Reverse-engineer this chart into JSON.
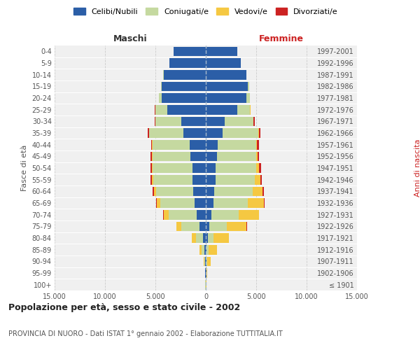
{
  "age_groups": [
    "100+",
    "95-99",
    "90-94",
    "85-89",
    "80-84",
    "75-79",
    "70-74",
    "65-69",
    "60-64",
    "55-59",
    "50-54",
    "45-49",
    "40-44",
    "35-39",
    "30-34",
    "25-29",
    "20-24",
    "15-19",
    "10-14",
    "5-9",
    "0-4"
  ],
  "birth_years": [
    "≤ 1901",
    "1902-1906",
    "1907-1911",
    "1912-1916",
    "1917-1921",
    "1922-1926",
    "1927-1931",
    "1932-1936",
    "1937-1941",
    "1942-1946",
    "1947-1951",
    "1952-1956",
    "1957-1961",
    "1962-1966",
    "1967-1971",
    "1972-1976",
    "1977-1981",
    "1982-1986",
    "1987-1991",
    "1992-1996",
    "1997-2001"
  ],
  "maschi": {
    "celibi": [
      30,
      50,
      80,
      150,
      280,
      600,
      900,
      1100,
      1250,
      1300,
      1350,
      1500,
      1600,
      2200,
      2400,
      3800,
      4400,
      4400,
      4200,
      3600,
      3200
    ],
    "coniugati": [
      5,
      20,
      80,
      250,
      700,
      1800,
      2800,
      3400,
      3700,
      3900,
      3900,
      3800,
      3700,
      3400,
      2600,
      1200,
      250,
      50,
      20,
      5,
      2
    ],
    "vedovi": [
      5,
      10,
      50,
      200,
      400,
      500,
      500,
      350,
      200,
      150,
      100,
      80,
      50,
      30,
      20,
      10,
      5,
      3,
      2,
      1,
      0
    ],
    "divorziati": [
      0,
      0,
      5,
      10,
      20,
      30,
      50,
      80,
      100,
      120,
      150,
      130,
      100,
      100,
      80,
      30,
      10,
      5,
      3,
      1,
      0
    ]
  },
  "femmine": {
    "nubili": [
      20,
      40,
      60,
      100,
      180,
      350,
      550,
      750,
      850,
      950,
      1000,
      1100,
      1200,
      1700,
      1900,
      3100,
      4000,
      4200,
      4000,
      3500,
      3100
    ],
    "coniugate": [
      3,
      10,
      50,
      200,
      600,
      1700,
      2700,
      3400,
      3800,
      3900,
      4000,
      3900,
      3800,
      3500,
      2800,
      1300,
      350,
      80,
      20,
      5,
      2
    ],
    "vedove": [
      30,
      80,
      350,
      800,
      1500,
      2000,
      2000,
      1600,
      1000,
      600,
      300,
      150,
      100,
      70,
      40,
      20,
      8,
      3,
      1,
      0,
      0
    ],
    "divorziate": [
      0,
      0,
      5,
      15,
      25,
      30,
      40,
      60,
      80,
      100,
      180,
      150,
      150,
      180,
      120,
      30,
      10,
      5,
      2,
      0,
      0
    ]
  },
  "colors": {
    "celibi": "#2b5ea7",
    "coniugati": "#c5d9a0",
    "vedovi": "#f5c842",
    "divorziati": "#cc2222"
  },
  "title": "Popolazione per età, sesso e stato civile - 2002",
  "subtitle": "PROVINCIA DI NUORO - Dati ISTAT 1° gennaio 2002 - Elaborazione TUTTITALIA.IT",
  "xlabel_left": "Maschi",
  "xlabel_right": "Femmine",
  "ylabel_left": "Fasce di età",
  "ylabel_right": "Anni di nascita",
  "xlim": 15000,
  "bg_color": "#f0f0f0",
  "grid_color": "#cccccc"
}
